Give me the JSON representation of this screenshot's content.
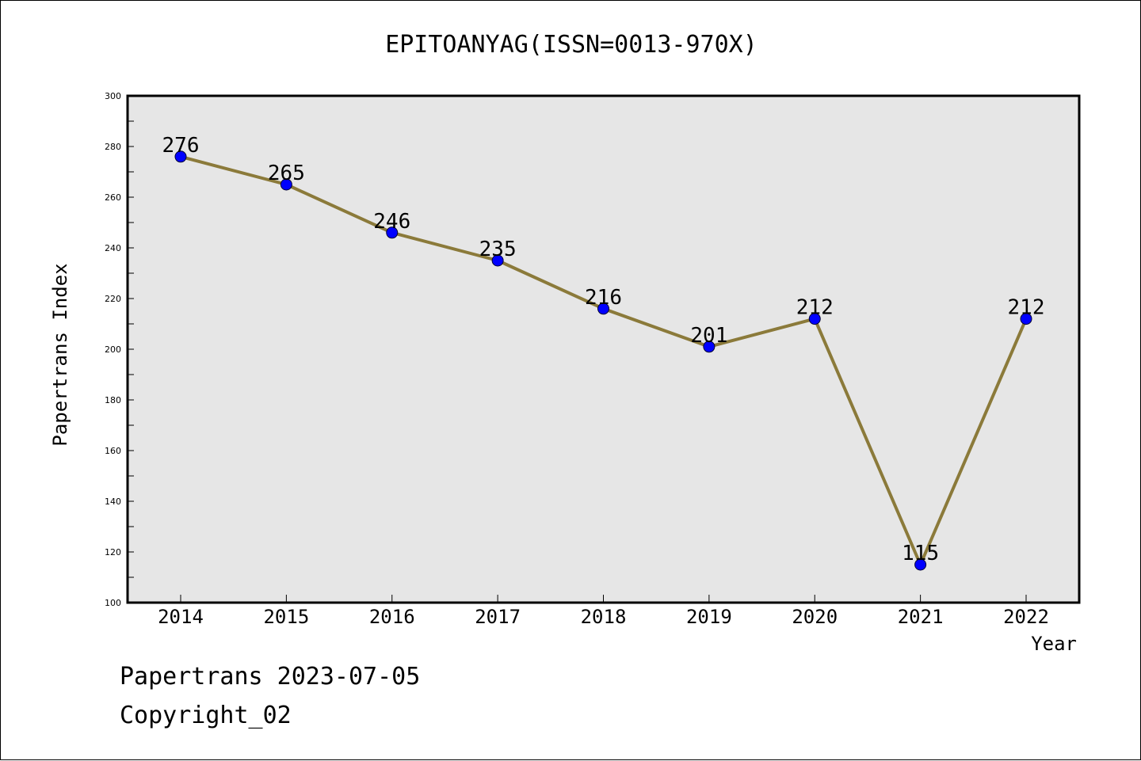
{
  "chart_data": {
    "type": "line",
    "title": "EPITOANYAG(ISSN=0013-970X)",
    "xlabel": "Year",
    "ylabel": "Papertrans Index",
    "categories": [
      "2014",
      "2015",
      "2016",
      "2017",
      "2018",
      "2019",
      "2020",
      "2021",
      "2022"
    ],
    "values": [
      276,
      265,
      246,
      235,
      216,
      201,
      212,
      115,
      212
    ],
    "data_labels": [
      "276",
      "265",
      "246",
      "235",
      "216",
      "201",
      "212",
      "115",
      "212"
    ],
    "ylim": [
      100,
      300
    ],
    "yticks": [
      "100",
      "120",
      "140",
      "160",
      "180",
      "200",
      "220",
      "240",
      "260",
      "280",
      "300"
    ],
    "grid": false,
    "legend": "none",
    "colors": {
      "line": "#8B7A3A",
      "marker": "#0000FF",
      "plot_background": "#E6E6E6"
    }
  },
  "footer": {
    "date_line": "Papertrans 2023-07-05",
    "copyright_line": "Copyright_02"
  }
}
